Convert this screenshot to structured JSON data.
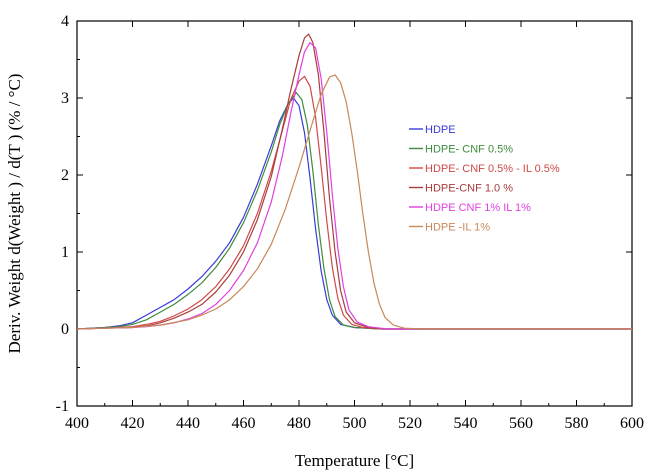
{
  "chart_data": {
    "type": "line",
    "title": "",
    "xlabel": "Temperature [°C]",
    "ylabel": "Deriv. Weight d(Weight ) / d(T ) (% / °C)",
    "xlim": [
      400,
      600
    ],
    "ylim": [
      -1,
      4
    ],
    "x_ticks": [
      "400",
      "420",
      "440",
      "460",
      "480",
      "500",
      "520",
      "540",
      "560",
      "580",
      "600"
    ],
    "y_ticks": [
      "-1",
      "0",
      "1",
      "2",
      "3",
      "4"
    ],
    "grid": false,
    "legend_position": "center-right",
    "series": [
      {
        "name": "HDPE",
        "color": "#3a3adc",
        "points": [
          [
            400,
            0
          ],
          [
            410,
            0.02
          ],
          [
            415,
            0.04
          ],
          [
            420,
            0.08
          ],
          [
            425,
            0.18
          ],
          [
            430,
            0.28
          ],
          [
            435,
            0.38
          ],
          [
            440,
            0.52
          ],
          [
            445,
            0.68
          ],
          [
            450,
            0.88
          ],
          [
            455,
            1.12
          ],
          [
            460,
            1.45
          ],
          [
            465,
            1.88
          ],
          [
            470,
            2.38
          ],
          [
            473,
            2.7
          ],
          [
            476,
            2.92
          ],
          [
            478,
            3.0
          ],
          [
            480,
            2.9
          ],
          [
            482,
            2.55
          ],
          [
            484,
            1.95
          ],
          [
            486,
            1.3
          ],
          [
            488,
            0.75
          ],
          [
            490,
            0.38
          ],
          [
            492,
            0.18
          ],
          [
            495,
            0.06
          ],
          [
            500,
            0.02
          ],
          [
            510,
            0.0
          ],
          [
            600,
            0.0
          ]
        ]
      },
      {
        "name": "HDPE- CNF 0.5%",
        "color": "#3d8c3d",
        "points": [
          [
            400,
            0
          ],
          [
            410,
            0.02
          ],
          [
            415,
            0.03
          ],
          [
            420,
            0.06
          ],
          [
            425,
            0.12
          ],
          [
            430,
            0.22
          ],
          [
            435,
            0.32
          ],
          [
            440,
            0.45
          ],
          [
            445,
            0.6
          ],
          [
            450,
            0.8
          ],
          [
            455,
            1.05
          ],
          [
            460,
            1.38
          ],
          [
            465,
            1.8
          ],
          [
            470,
            2.3
          ],
          [
            473,
            2.65
          ],
          [
            476,
            2.92
          ],
          [
            479,
            3.07
          ],
          [
            481,
            2.98
          ],
          [
            483,
            2.65
          ],
          [
            485,
            2.05
          ],
          [
            487,
            1.35
          ],
          [
            489,
            0.78
          ],
          [
            491,
            0.38
          ],
          [
            493,
            0.16
          ],
          [
            496,
            0.05
          ],
          [
            500,
            0.02
          ],
          [
            510,
            0.0
          ],
          [
            600,
            0.0
          ]
        ]
      },
      {
        "name": "HDPE- CNF 0.5% - IL 0.5%",
        "color": "#d04848",
        "points": [
          [
            400,
            0
          ],
          [
            410,
            0.01
          ],
          [
            420,
            0.03
          ],
          [
            425,
            0.06
          ],
          [
            430,
            0.1
          ],
          [
            435,
            0.17
          ],
          [
            440,
            0.26
          ],
          [
            445,
            0.38
          ],
          [
            450,
            0.55
          ],
          [
            455,
            0.78
          ],
          [
            460,
            1.08
          ],
          [
            465,
            1.5
          ],
          [
            470,
            2.05
          ],
          [
            474,
            2.58
          ],
          [
            477,
            2.98
          ],
          [
            480,
            3.22
          ],
          [
            482,
            3.28
          ],
          [
            484,
            3.15
          ],
          [
            486,
            2.75
          ],
          [
            488,
            2.1
          ],
          [
            490,
            1.4
          ],
          [
            492,
            0.8
          ],
          [
            494,
            0.4
          ],
          [
            496,
            0.18
          ],
          [
            499,
            0.06
          ],
          [
            503,
            0.02
          ],
          [
            510,
            0.0
          ],
          [
            600,
            0.0
          ]
        ]
      },
      {
        "name": "HDPE-CNF 1.0 %",
        "color": "#a83c3c",
        "points": [
          [
            400,
            0
          ],
          [
            410,
            0.01
          ],
          [
            420,
            0.02
          ],
          [
            425,
            0.04
          ],
          [
            430,
            0.08
          ],
          [
            435,
            0.14
          ],
          [
            440,
            0.22
          ],
          [
            445,
            0.32
          ],
          [
            450,
            0.48
          ],
          [
            455,
            0.7
          ],
          [
            460,
            1.0
          ],
          [
            465,
            1.42
          ],
          [
            470,
            1.98
          ],
          [
            474,
            2.6
          ],
          [
            477,
            3.1
          ],
          [
            480,
            3.55
          ],
          [
            482,
            3.78
          ],
          [
            483.5,
            3.83
          ],
          [
            485,
            3.72
          ],
          [
            487,
            3.3
          ],
          [
            489,
            2.55
          ],
          [
            491,
            1.7
          ],
          [
            493,
            1.0
          ],
          [
            495,
            0.5
          ],
          [
            497,
            0.22
          ],
          [
            500,
            0.08
          ],
          [
            505,
            0.02
          ],
          [
            512,
            0.0
          ],
          [
            600,
            0.0
          ]
        ]
      },
      {
        "name": "HDPE CNF 1% IL 1%",
        "color": "#e040e0",
        "points": [
          [
            400,
            0
          ],
          [
            410,
            0.01
          ],
          [
            420,
            0.02
          ],
          [
            425,
            0.03
          ],
          [
            430,
            0.05
          ],
          [
            435,
            0.08
          ],
          [
            440,
            0.13
          ],
          [
            445,
            0.2
          ],
          [
            450,
            0.32
          ],
          [
            455,
            0.5
          ],
          [
            460,
            0.76
          ],
          [
            465,
            1.12
          ],
          [
            470,
            1.65
          ],
          [
            474,
            2.25
          ],
          [
            477,
            2.8
          ],
          [
            480,
            3.3
          ],
          [
            482,
            3.6
          ],
          [
            484,
            3.72
          ],
          [
            486,
            3.65
          ],
          [
            488,
            3.25
          ],
          [
            490,
            2.55
          ],
          [
            492,
            1.75
          ],
          [
            494,
            1.05
          ],
          [
            496,
            0.55
          ],
          [
            498,
            0.25
          ],
          [
            501,
            0.09
          ],
          [
            505,
            0.03
          ],
          [
            512,
            0.0
          ],
          [
            600,
            0.0
          ]
        ]
      },
      {
        "name": "HDPE -IL 1%",
        "color": "#c88858",
        "points": [
          [
            400,
            0
          ],
          [
            410,
            0.01
          ],
          [
            420,
            0.02
          ],
          [
            430,
            0.05
          ],
          [
            440,
            0.12
          ],
          [
            445,
            0.18
          ],
          [
            450,
            0.26
          ],
          [
            455,
            0.38
          ],
          [
            460,
            0.55
          ],
          [
            465,
            0.78
          ],
          [
            470,
            1.1
          ],
          [
            475,
            1.55
          ],
          [
            480,
            2.1
          ],
          [
            485,
            2.7
          ],
          [
            488,
            3.05
          ],
          [
            491,
            3.27
          ],
          [
            493,
            3.3
          ],
          [
            495,
            3.2
          ],
          [
            497,
            2.95
          ],
          [
            499,
            2.55
          ],
          [
            501,
            2.05
          ],
          [
            503,
            1.5
          ],
          [
            505,
            1.0
          ],
          [
            507,
            0.6
          ],
          [
            509,
            0.32
          ],
          [
            511,
            0.15
          ],
          [
            514,
            0.05
          ],
          [
            518,
            0.01
          ],
          [
            525,
            0.0
          ],
          [
            600,
            0.0
          ]
        ]
      }
    ]
  }
}
